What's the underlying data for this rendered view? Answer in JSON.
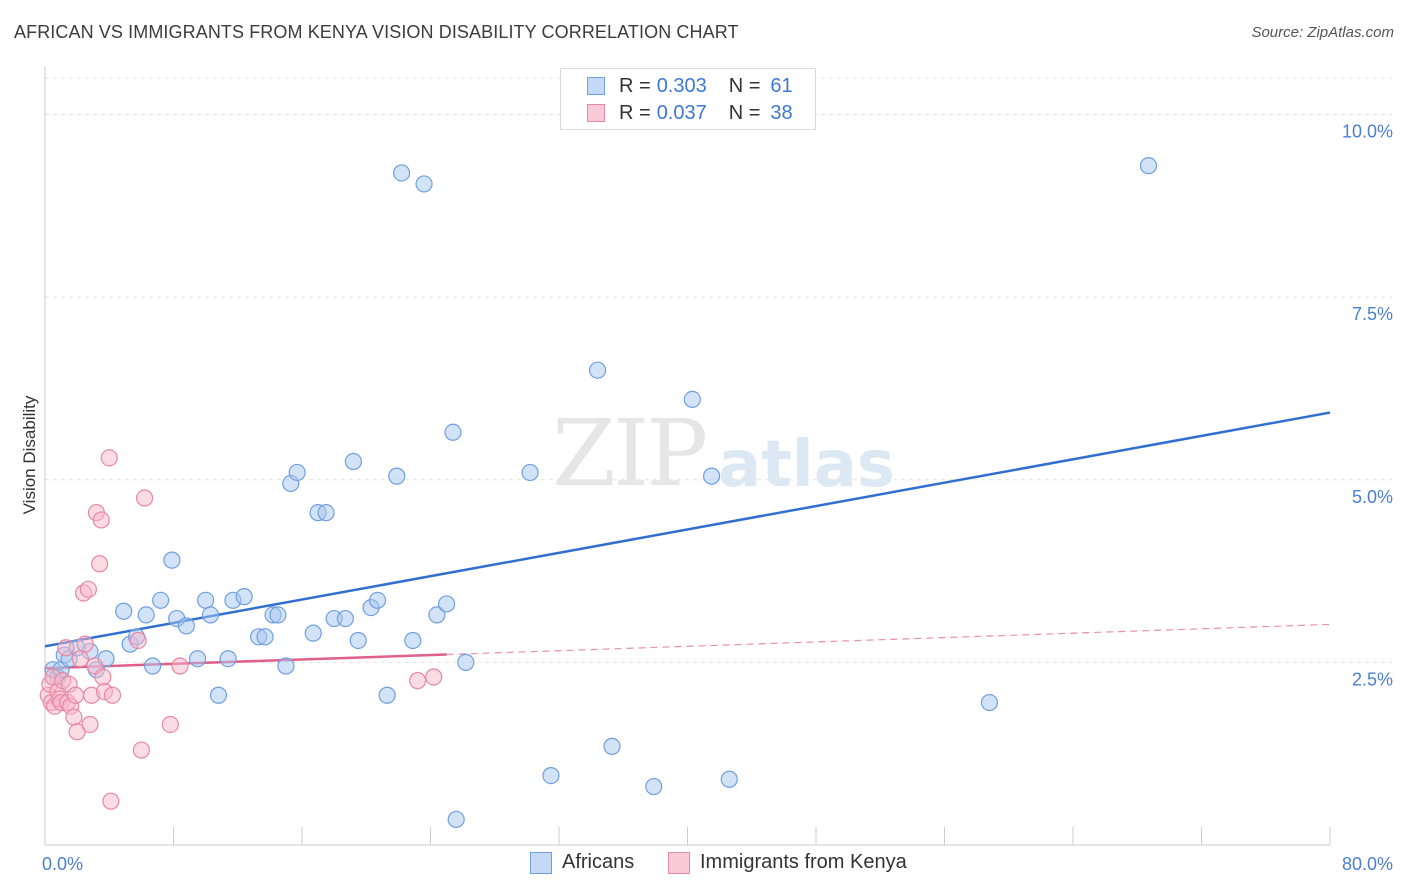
{
  "header": {
    "title": "AFRICAN VS IMMIGRANTS FROM KENYA VISION DISABILITY CORRELATION CHART",
    "source": "Source: ZipAtlas.com"
  },
  "watermark": {
    "zip": "ZIP",
    "atlas": "atlas"
  },
  "legend_top": {
    "rows": [
      {
        "r_label": "R = ",
        "r_value": "0.303",
        "n_label": "N = ",
        "n_value": "61"
      },
      {
        "r_label": "R = ",
        "r_value": "0.037",
        "n_label": "N = ",
        "n_value": "38"
      }
    ]
  },
  "legend_bottom": {
    "items": [
      {
        "label": "Africans"
      },
      {
        "label": "Immigrants from Kenya"
      }
    ]
  },
  "colors": {
    "blue_fill": "#a8c8f0",
    "blue_stroke": "#6f9fe0",
    "blue_line": "#2f6fd1",
    "pink_fill": "#f7b8ca",
    "pink_stroke": "#e887a6",
    "pink_line": "#e0608a",
    "grid": "#e3e3e3",
    "axis": "#cccccc"
  },
  "chart_data": {
    "type": "scatter",
    "title": "AFRICAN VS IMMIGRANTS FROM KENYA VISION DISABILITY CORRELATION CHART",
    "xlabel": "",
    "ylabel": "Vision Disability",
    "xlim": [
      0,
      80
    ],
    "ylim": [
      0,
      10.5
    ],
    "x_tick_labels": [
      "0.0%",
      "80.0%"
    ],
    "y_ticks": [
      2.5,
      5.0,
      7.5,
      10.0
    ],
    "y_tick_labels": [
      "2.5%",
      "5.0%",
      "7.5%",
      "10.0%"
    ],
    "grid": true,
    "legend_position": "top-center",
    "series": [
      {
        "name": "Africans",
        "color": "blue",
        "R": 0.303,
        "N": 61,
        "trendline": {
          "x": [
            0,
            80
          ],
          "y": [
            2.72,
            5.92
          ],
          "style": "solid"
        },
        "points": [
          [
            0.5,
            2.4
          ],
          [
            0.8,
            2.3
          ],
          [
            1.0,
            2.4
          ],
          [
            1.2,
            2.6
          ],
          [
            1.5,
            2.55
          ],
          [
            2.0,
            2.7
          ],
          [
            2.8,
            2.65
          ],
          [
            3.2,
            2.4
          ],
          [
            3.8,
            2.55
          ],
          [
            4.9,
            3.2
          ],
          [
            5.3,
            2.75
          ],
          [
            5.7,
            2.85
          ],
          [
            6.3,
            3.15
          ],
          [
            6.7,
            2.45
          ],
          [
            7.2,
            3.35
          ],
          [
            7.9,
            3.9
          ],
          [
            8.2,
            3.1
          ],
          [
            8.8,
            3.0
          ],
          [
            9.5,
            2.55
          ],
          [
            10.0,
            3.35
          ],
          [
            10.3,
            3.15
          ],
          [
            10.8,
            2.05
          ],
          [
            11.4,
            2.55
          ],
          [
            11.7,
            3.35
          ],
          [
            12.4,
            3.4
          ],
          [
            13.3,
            2.85
          ],
          [
            13.7,
            2.85
          ],
          [
            14.2,
            3.15
          ],
          [
            14.5,
            3.15
          ],
          [
            15.0,
            2.45
          ],
          [
            15.3,
            4.95
          ],
          [
            15.7,
            5.1
          ],
          [
            16.7,
            2.9
          ],
          [
            17.0,
            4.55
          ],
          [
            17.5,
            4.55
          ],
          [
            18.0,
            3.1
          ],
          [
            18.7,
            3.1
          ],
          [
            19.2,
            5.25
          ],
          [
            19.5,
            2.8
          ],
          [
            20.3,
            3.25
          ],
          [
            20.7,
            3.35
          ],
          [
            21.3,
            2.05
          ],
          [
            21.9,
            5.05
          ],
          [
            22.2,
            9.2
          ],
          [
            22.9,
            2.8
          ],
          [
            23.6,
            9.05
          ],
          [
            24.4,
            3.15
          ],
          [
            25.0,
            3.3
          ],
          [
            25.4,
            5.65
          ],
          [
            25.6,
            0.35
          ],
          [
            26.2,
            2.5
          ],
          [
            30.2,
            5.1
          ],
          [
            31.5,
            0.95
          ],
          [
            34.4,
            6.5
          ],
          [
            35.3,
            1.35
          ],
          [
            37.9,
            0.8
          ],
          [
            40.3,
            6.1
          ],
          [
            41.5,
            5.05
          ],
          [
            42.6,
            0.9
          ],
          [
            58.8,
            1.95
          ],
          [
            68.7,
            9.3
          ]
        ]
      },
      {
        "name": "Immigrants from Kenya",
        "color": "pink",
        "R": 0.037,
        "N": 38,
        "trendline": {
          "x": [
            0,
            80
          ],
          "y": [
            2.42,
            3.02
          ],
          "solid_until_x": 25
        },
        "points": [
          [
            0.2,
            2.05
          ],
          [
            0.3,
            2.2
          ],
          [
            0.4,
            1.95
          ],
          [
            0.5,
            2.3
          ],
          [
            0.6,
            1.9
          ],
          [
            0.8,
            2.1
          ],
          [
            0.9,
            2.0
          ],
          [
            1.0,
            1.95
          ],
          [
            1.1,
            2.25
          ],
          [
            1.3,
            2.7
          ],
          [
            1.4,
            1.95
          ],
          [
            1.5,
            2.2
          ],
          [
            1.6,
            1.9
          ],
          [
            1.8,
            1.75
          ],
          [
            1.9,
            2.05
          ],
          [
            2.0,
            1.55
          ],
          [
            2.2,
            2.55
          ],
          [
            2.4,
            3.45
          ],
          [
            2.5,
            2.75
          ],
          [
            2.7,
            3.5
          ],
          [
            2.8,
            1.65
          ],
          [
            2.9,
            2.05
          ],
          [
            3.1,
            2.45
          ],
          [
            3.2,
            4.55
          ],
          [
            3.4,
            3.85
          ],
          [
            3.5,
            4.45
          ],
          [
            3.6,
            2.3
          ],
          [
            3.7,
            2.1
          ],
          [
            4.0,
            5.3
          ],
          [
            4.1,
            0.6
          ],
          [
            4.2,
            2.05
          ],
          [
            5.8,
            2.8
          ],
          [
            6.0,
            1.3
          ],
          [
            6.2,
            4.75
          ],
          [
            7.8,
            1.65
          ],
          [
            8.4,
            2.45
          ],
          [
            23.2,
            2.25
          ],
          [
            24.2,
            2.3
          ]
        ]
      }
    ]
  }
}
